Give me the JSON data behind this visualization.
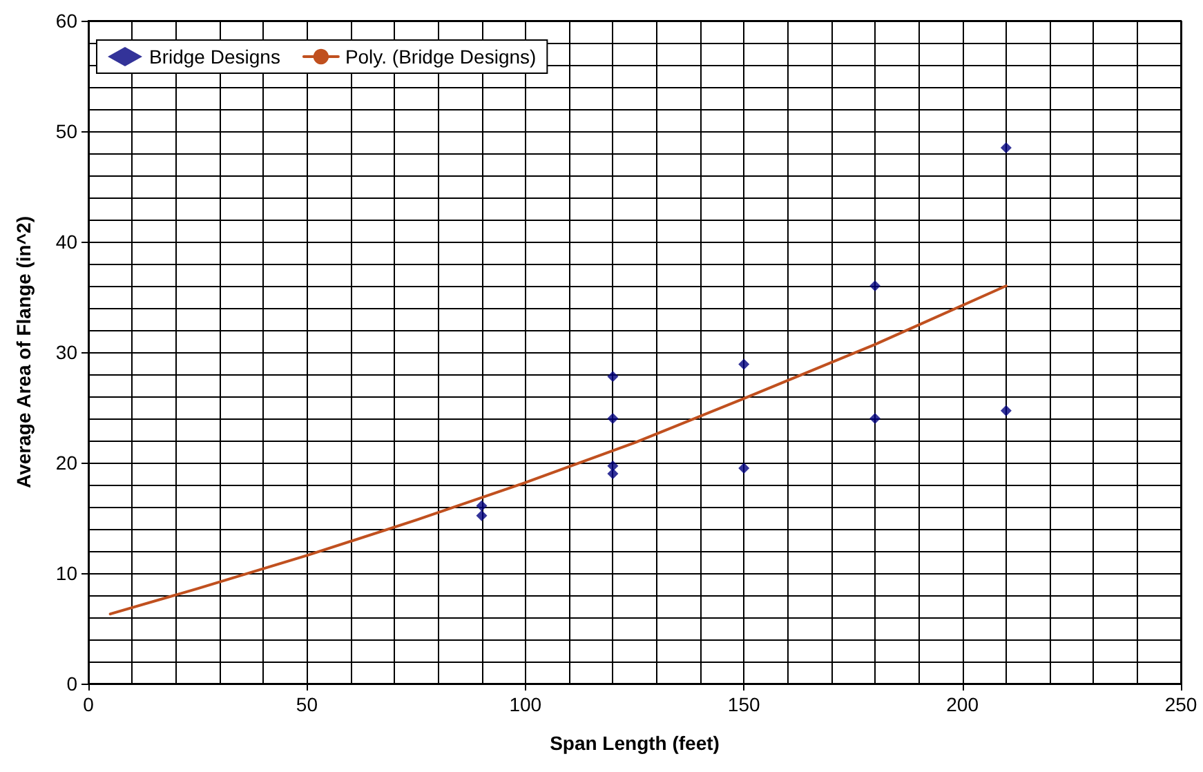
{
  "chart_data": {
    "type": "scatter",
    "xlabel": "Span Length (feet)",
    "ylabel": "Average Area of Flange (in^2)",
    "xlim": [
      0,
      250
    ],
    "xticks": [
      0,
      50,
      100,
      150,
      200,
      250
    ],
    "ylim": [
      0,
      60
    ],
    "yticks": [
      0,
      10,
      20,
      30,
      40,
      50,
      60
    ],
    "grid": true,
    "legend": "top left",
    "marker": "diamond",
    "series": [
      {
        "name": "Bridge Designs",
        "color": "#000080",
        "x": [
          90,
          90,
          120,
          120,
          120,
          120,
          150,
          150,
          180,
          180,
          210,
          210
        ],
        "values": [
          16.1,
          15.2,
          27.8,
          24.0,
          19.7,
          19.0,
          28.9,
          19.5,
          36.0,
          24.0,
          48.5,
          24.7
        ]
      },
      {
        "name": "Poly. (Bridge Designs)",
        "type": "line",
        "color": "#c0501f",
        "marker": "none",
        "line_style": "solid",
        "x": [
          5,
          25,
          50,
          75,
          100,
          125,
          150,
          180,
          210
        ],
        "values": [
          6.3,
          8.6,
          11.6,
          14.8,
          18.2,
          21.8,
          25.8,
          30.7,
          36.0
        ]
      }
    ]
  }
}
